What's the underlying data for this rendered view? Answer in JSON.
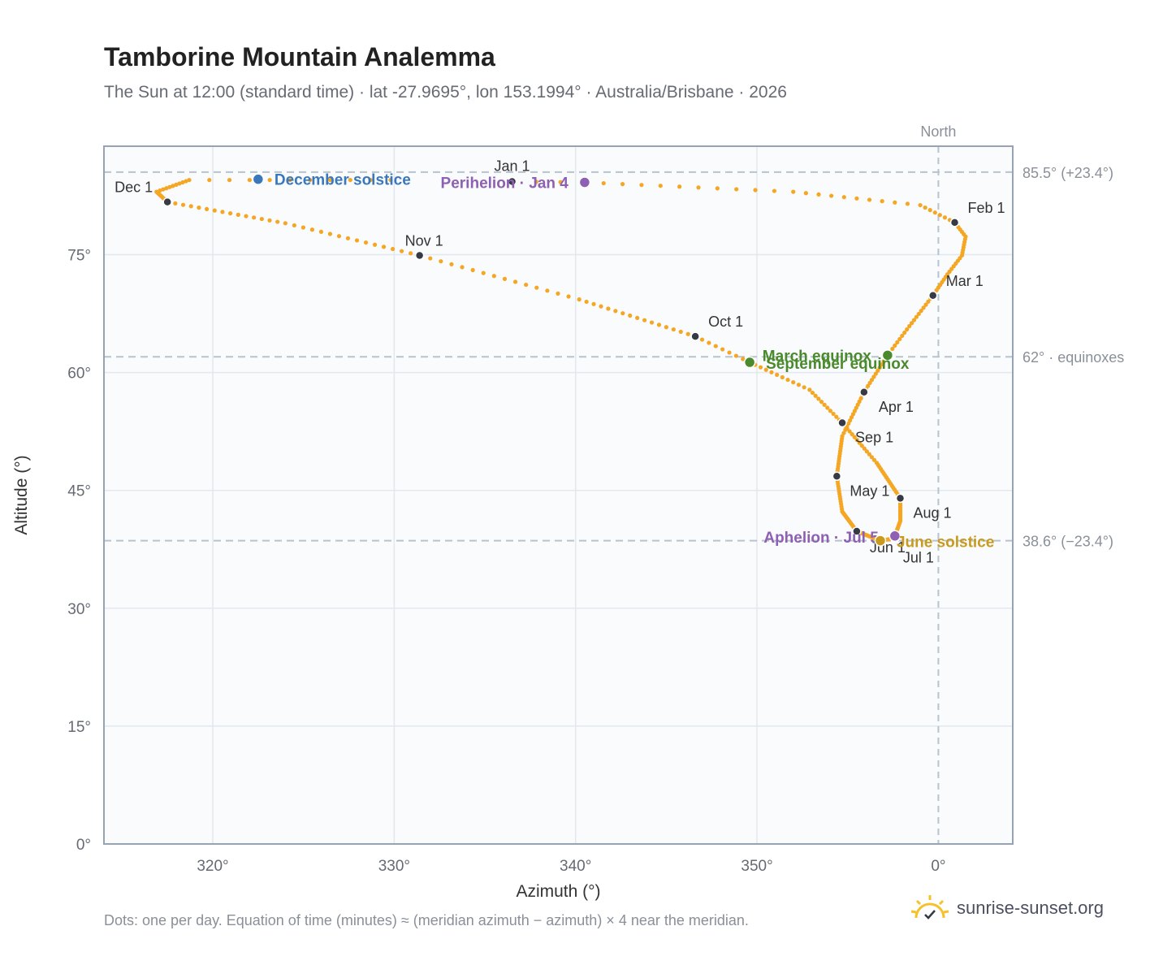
{
  "page": {
    "title": "Tamborine Mountain Analemma",
    "subtitle": "The Sun at 12:00 (standard time) · lat -27.9695°, lon 153.1994° · Australia/Brisbane · 2026",
    "footnote": "Dots: one per day. Equation of time (minutes) ≈ (meridian azimuth − azimuth) × 4 near the meridian.",
    "brand": "sunrise-sunset.org"
  },
  "colors": {
    "path": "#f5a623",
    "month_marker": "#373a45",
    "solstice_dec": "#3a78bd",
    "solstice_jun": "#c99a1e",
    "equinox": "#4a8a2c",
    "apsis": "#8e60b3",
    "guide": "#b7c3cd",
    "plot_bg": "#f9fbfd",
    "grid": "#e2e8ee"
  },
  "chart_data": {
    "type": "scatter",
    "title": "Tamborine Mountain Analemma",
    "xlabel": "Azimuth (°)",
    "ylabel": "Altitude (°)",
    "xlim": [
      -14.0,
      4.1
    ],
    "ylim": [
      0,
      88.8
    ],
    "x_tick_values": [
      -40,
      -30,
      -20,
      -10,
      0
    ],
    "x_tick_labels": [
      "320°",
      "330°",
      "340°",
      "350°",
      "0°"
    ],
    "y_ticks": [
      0,
      15,
      30,
      45,
      60,
      75
    ],
    "y_tick_labels": [
      "0°",
      "15°",
      "30°",
      "45°",
      "60°",
      "75°"
    ],
    "grid": true,
    "x_scale_note": "azimuth plotted as degrees relative to north",
    "north_label": "North",
    "north_x": 0,
    "reference_lines": [
      {
        "y": 85.5,
        "label": "85.5° (+23.4°)"
      },
      {
        "y": 62.0,
        "label": "62° · equinoxes"
      },
      {
        "y": 38.6,
        "label": "38.6° (−23.4°)"
      }
    ],
    "path_keypoints": [
      {
        "day": 1,
        "az": -23.5,
        "alt": 84.3
      },
      {
        "day": 4,
        "az": -19.5,
        "alt": 84.2
      },
      {
        "day": 15,
        "az": -8.0,
        "alt": 83.0
      },
      {
        "day": 25,
        "az": -1.0,
        "alt": 81.3
      },
      {
        "day": 32,
        "az": 0.9,
        "alt": 79.1
      },
      {
        "day": 38,
        "az": 1.5,
        "alt": 77.3
      },
      {
        "day": 45,
        "az": 1.3,
        "alt": 74.9
      },
      {
        "day": 52,
        "az": 0.5,
        "alt": 72.5
      },
      {
        "day": 60,
        "az": -0.3,
        "alt": 69.8
      },
      {
        "day": 70,
        "az": -1.6,
        "alt": 65.9
      },
      {
        "day": 79,
        "az": -2.8,
        "alt": 62.2
      },
      {
        "day": 91,
        "az": -4.1,
        "alt": 57.5
      },
      {
        "day": 105,
        "az": -5.3,
        "alt": 51.9
      },
      {
        "day": 121,
        "az": -5.6,
        "alt": 46.8
      },
      {
        "day": 135,
        "az": -5.3,
        "alt": 42.3
      },
      {
        "day": 152,
        "az": -4.5,
        "alt": 39.8
      },
      {
        "day": 172,
        "az": -3.2,
        "alt": 38.6
      },
      {
        "day": 182,
        "az": -2.4,
        "alt": 38.9
      },
      {
        "day": 186,
        "az": -2.4,
        "alt": 39.2
      },
      {
        "day": 200,
        "az": -2.1,
        "alt": 41.1
      },
      {
        "day": 213,
        "az": -2.1,
        "alt": 44.0
      },
      {
        "day": 230,
        "az": -3.4,
        "alt": 48.5
      },
      {
        "day": 244,
        "az": -5.3,
        "alt": 53.6
      },
      {
        "day": 255,
        "az": -7.1,
        "alt": 57.8
      },
      {
        "day": 266,
        "az": -10.4,
        "alt": 61.3
      },
      {
        "day": 274,
        "az": -13.4,
        "alt": 64.6
      },
      {
        "day": 290,
        "az": -19.8,
        "alt": 69.3
      },
      {
        "day": 305,
        "az": -28.6,
        "alt": 74.9
      },
      {
        "day": 320,
        "az": -36.0,
        "alt": 79.0
      },
      {
        "day": 335,
        "az": -42.5,
        "alt": 81.7
      },
      {
        "day": 345,
        "az": -43.1,
        "alt": 83.0
      },
      {
        "day": 355,
        "az": -41.3,
        "alt": 84.5
      },
      {
        "day": 365,
        "az": -30.2,
        "alt": 84.5
      }
    ],
    "month_markers": [
      {
        "label": "Jan 1",
        "az": -23.5,
        "alt": 84.3
      },
      {
        "label": "Feb 1",
        "az": 0.9,
        "alt": 79.1
      },
      {
        "label": "Mar 1",
        "az": -0.3,
        "alt": 69.8
      },
      {
        "label": "Apr 1",
        "az": -4.1,
        "alt": 57.5
      },
      {
        "label": "May 1",
        "az": -5.6,
        "alt": 46.8
      },
      {
        "label": "Jun 1",
        "az": -4.5,
        "alt": 39.8
      },
      {
        "label": "Jul 1",
        "az": -2.4,
        "alt": 38.9
      },
      {
        "label": "Aug 1",
        "az": -2.1,
        "alt": 44.0
      },
      {
        "label": "Sep 1",
        "az": -5.3,
        "alt": 53.6
      },
      {
        "label": "Oct 1",
        "az": -13.4,
        "alt": 64.6
      },
      {
        "label": "Nov 1",
        "az": -28.6,
        "alt": 74.9
      },
      {
        "label": "Dec 1",
        "az": -42.5,
        "alt": 81.7
      }
    ],
    "event_labels": {
      "december_solstice": "December solstice",
      "perihelion": "Perihelion · Jan 4",
      "march_equinox": "March equinox",
      "september_equinox": "September equinox",
      "aphelion": "Aphelion · Jul 5",
      "june_solstice": "June solstice"
    },
    "events": [
      {
        "key": "december_solstice",
        "az": -37.5,
        "alt": 84.6
      },
      {
        "key": "perihelion",
        "az": -19.5,
        "alt": 84.2
      },
      {
        "key": "march_equinox",
        "az": -2.8,
        "alt": 62.2
      },
      {
        "key": "september_equinox",
        "az": -10.4,
        "alt": 61.3
      },
      {
        "key": "aphelion",
        "az": -2.4,
        "alt": 39.2
      },
      {
        "key": "june_solstice",
        "az": -3.2,
        "alt": 38.6
      }
    ]
  }
}
